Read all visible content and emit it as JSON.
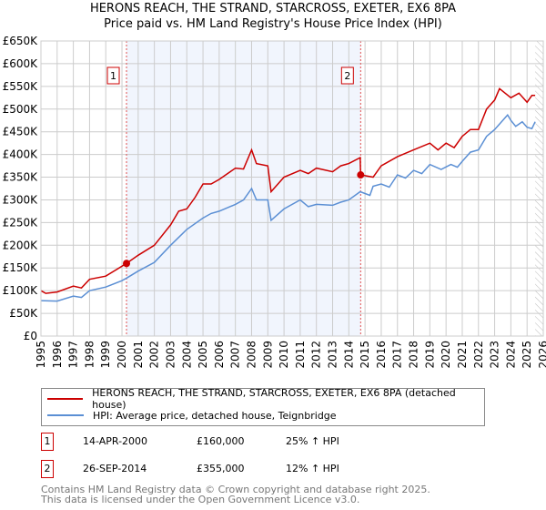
{
  "title": "HERONS REACH, THE STRAND, STARCROSS, EXETER, EX6 8PA",
  "subtitle": "Price paid vs. HM Land Registry's House Price Index (HPI)",
  "chart_data": {
    "type": "line",
    "title": "HERONS REACH, THE STRAND, STARCROSS, EXETER, EX6 8PA",
    "subtitle": "Price paid vs. HM Land Registry's House Price Index (HPI)",
    "xlim": [
      1995,
      2026
    ],
    "ylim": [
      0,
      650000
    ],
    "x_ticks": [
      "1995",
      "1996",
      "1997",
      "1998",
      "1999",
      "2000",
      "2001",
      "2002",
      "2003",
      "2004",
      "2005",
      "2006",
      "2007",
      "2008",
      "2009",
      "2010",
      "2011",
      "2012",
      "2013",
      "2014",
      "2015",
      "2016",
      "2017",
      "2018",
      "2019",
      "2020",
      "2021",
      "2022",
      "2023",
      "2024",
      "2025",
      "2026"
    ],
    "y_ticks": [
      {
        "v": 0,
        "l": "£0"
      },
      {
        "v": 50000,
        "l": "£50K"
      },
      {
        "v": 100000,
        "l": "£100K"
      },
      {
        "v": 150000,
        "l": "£150K"
      },
      {
        "v": 200000,
        "l": "£200K"
      },
      {
        "v": 250000,
        "l": "£250K"
      },
      {
        "v": 300000,
        "l": "£300K"
      },
      {
        "v": 350000,
        "l": "£350K"
      },
      {
        "v": 400000,
        "l": "£400K"
      },
      {
        "v": 450000,
        "l": "£450K"
      },
      {
        "v": 500000,
        "l": "£500K"
      },
      {
        "v": 550000,
        "l": "£550K"
      },
      {
        "v": 600000,
        "l": "£600K"
      },
      {
        "v": 650000,
        "l": "£650K"
      }
    ],
    "grid": true,
    "series": [
      {
        "name": "HERONS REACH, THE STRAND, STARCROSS, EXETER, EX6 8PA (detached house)",
        "color": "#cc0000",
        "x": [
          1995,
          1995.3,
          1996,
          1997,
          1997.5,
          1998,
          1999,
          2000.28,
          2001,
          2002,
          2003,
          2003.5,
          2004,
          2004.5,
          2005,
          2005.5,
          2006,
          2007,
          2007.5,
          2008,
          2008.3,
          2009,
          2009.2,
          2010,
          2011,
          2011.5,
          2012,
          2013,
          2013.5,
          2014,
          2014.7,
          2014.73,
          2015.5,
          2016,
          2017,
          2018,
          2019,
          2019.5,
          2020,
          2020.5,
          2021,
          2021.5,
          2022,
          2022.5,
          2023,
          2023.3,
          2024,
          2024.5,
          2025,
          2025.3,
          2025.5
        ],
        "y": [
          100000,
          94000,
          97000,
          110000,
          106000,
          125000,
          132000,
          160000,
          178000,
          200000,
          245000,
          275000,
          280000,
          305000,
          335000,
          335000,
          345000,
          370000,
          368000,
          410000,
          380000,
          375000,
          318000,
          350000,
          365000,
          358000,
          370000,
          362000,
          375000,
          380000,
          393000,
          355000,
          350000,
          375000,
          395000,
          410000,
          425000,
          410000,
          425000,
          415000,
          440000,
          455000,
          455000,
          500000,
          520000,
          545000,
          525000,
          535000,
          515000,
          530000,
          530000
        ]
      },
      {
        "name": "HPI: Average price, detached house, Teignbridge",
        "color": "#5b8fd4",
        "x": [
          1995,
          1996,
          1997,
          1997.5,
          1998,
          1999,
          2000,
          2000.3,
          2001,
          2002,
          2003,
          2004,
          2005,
          2005.5,
          2006,
          2007,
          2007.5,
          2008,
          2008.3,
          2009,
          2009.2,
          2010,
          2011,
          2011.5,
          2012,
          2013,
          2013.5,
          2014,
          2014.7,
          2015.3,
          2015.5,
          2016,
          2016.5,
          2017,
          2017.5,
          2018,
          2018.5,
          2019,
          2019.7,
          2020.3,
          2020.7,
          2021,
          2021.5,
          2022,
          2022.5,
          2023,
          2023.8,
          2024,
          2024.3,
          2024.7,
          2025,
          2025.3,
          2025.5
        ],
        "y": [
          78000,
          77000,
          88000,
          85000,
          100000,
          108000,
          122000,
          128000,
          143000,
          162000,
          200000,
          235000,
          260000,
          270000,
          275000,
          290000,
          300000,
          325000,
          300000,
          300000,
          255000,
          280000,
          300000,
          285000,
          290000,
          288000,
          295000,
          300000,
          318000,
          310000,
          330000,
          335000,
          328000,
          355000,
          348000,
          365000,
          358000,
          378000,
          367000,
          378000,
          372000,
          385000,
          405000,
          410000,
          440000,
          455000,
          487000,
          475000,
          462000,
          472000,
          460000,
          457000,
          472000
        ]
      }
    ],
    "sales": [
      {
        "label": "1",
        "x": 2000.28,
        "y": 160000
      },
      {
        "label": "2",
        "x": 2014.73,
        "y": 355000
      }
    ],
    "shaded_range": [
      2000.28,
      2014.73
    ],
    "hatched_from": 2025.5
  },
  "legend": {
    "red_label": "HERONS REACH, THE STRAND, STARCROSS, EXETER, EX6 8PA (detached house)",
    "blue_label": "HPI: Average price, detached house, Teignbridge"
  },
  "sales_table": [
    {
      "num": "1",
      "date": "14-APR-2000",
      "price": "£160,000",
      "hpi": "25% ↑ HPI"
    },
    {
      "num": "2",
      "date": "26-SEP-2014",
      "price": "£355,000",
      "hpi": "12% ↑ HPI"
    }
  ],
  "footer": {
    "line1": "Contains HM Land Registry data © Crown copyright and database right 2025.",
    "line2": "This data is licensed under the Open Government Licence v3.0."
  }
}
